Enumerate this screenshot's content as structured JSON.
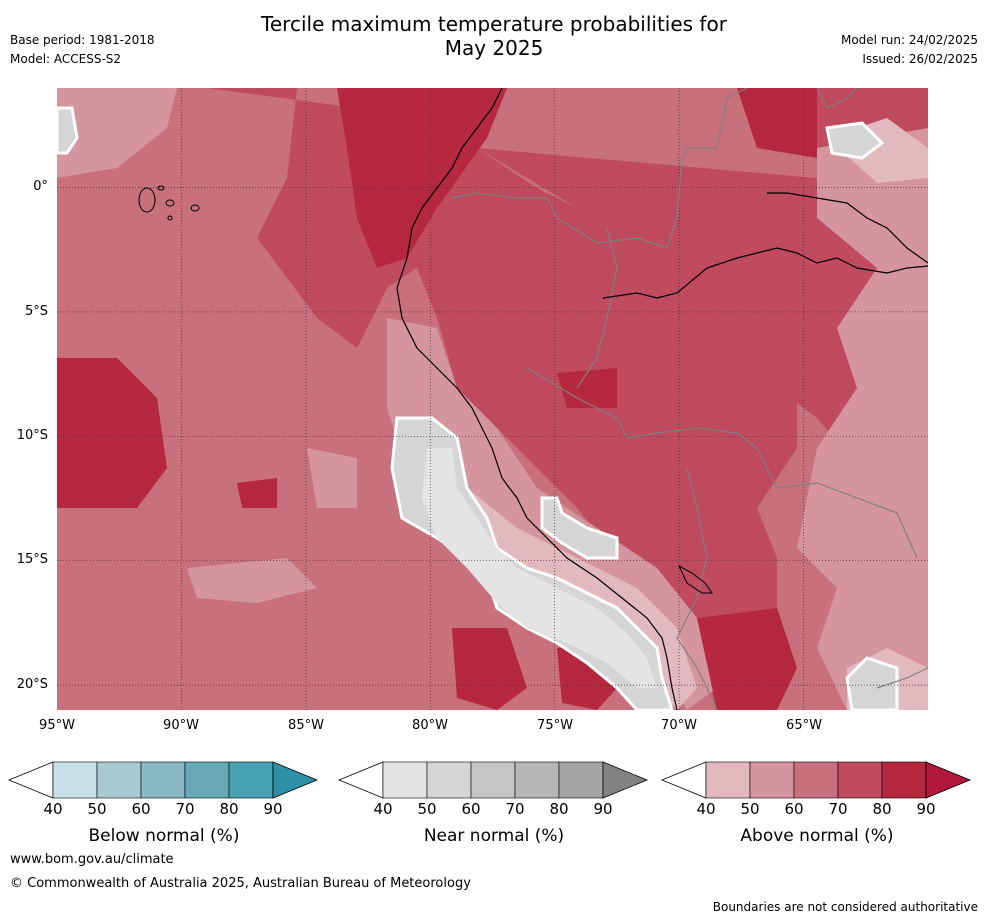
{
  "header": {
    "title_line1": "Tercile maximum temperature probabilities for",
    "title_line2": "May 2025",
    "base_period": "Base period: 1981-2018",
    "model": "Model: ACCESS-S2",
    "model_run": "Model run: 24/02/2025",
    "issued": "Issued: 26/02/2025"
  },
  "map": {
    "lon_labels": [
      "95°W",
      "90°W",
      "85°W",
      "80°W",
      "75°W",
      "70°W",
      "65°W"
    ],
    "lat_labels": [
      "0°",
      "5°S",
      "10°S",
      "15°S",
      "20°S"
    ],
    "lon_range": [
      -95,
      -60
    ],
    "lat_range": [
      -21,
      4
    ],
    "colors": {
      "above_40": "#e2b9be",
      "above_50": "#d4959e",
      "above_60": "#c9707d",
      "above_70": "#c04b5e",
      "above_80": "#b5283f",
      "near_40": "#e4e4e4",
      "near_50": "#d5d5d5",
      "coast": "#000000",
      "border": "#808080",
      "grid": "#333333"
    }
  },
  "colorbars": [
    {
      "title": "Below normal (%)",
      "ticks": [
        "40",
        "50",
        "60",
        "70",
        "80",
        "90"
      ],
      "colors": [
        "#c8e1e7",
        "#a7c9d0",
        "#89b7c2",
        "#69a9b6",
        "#47a2b2",
        "#2e8fa6"
      ]
    },
    {
      "title": "Near normal (%)",
      "ticks": [
        "40",
        "50",
        "60",
        "70",
        "80",
        "90"
      ],
      "colors": [
        "#e4e4e4",
        "#d5d5d5",
        "#c6c6c6",
        "#b6b6b6",
        "#a3a3a3",
        "#838383"
      ]
    },
    {
      "title": "Above normal (%)",
      "ticks": [
        "40",
        "50",
        "60",
        "70",
        "80",
        "90"
      ],
      "colors": [
        "#e2b9be",
        "#d4959e",
        "#c9707d",
        "#c04b5e",
        "#b5283f",
        "#b0173a"
      ]
    }
  ],
  "footer": {
    "website": "www.bom.gov.au/climate",
    "copyright": "© Commonwealth of Australia 2025, Australian Bureau of Meteorology",
    "disclaimer": "Boundaries are not considered authoritative"
  }
}
